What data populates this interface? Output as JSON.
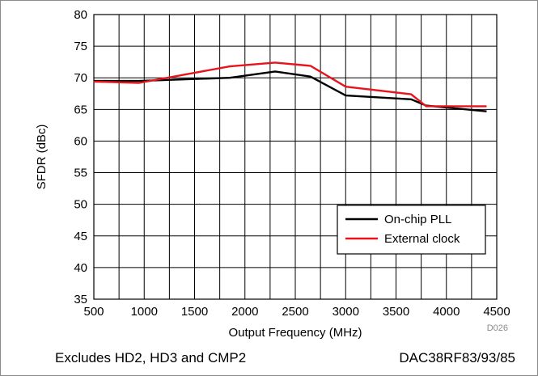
{
  "chart_data": {
    "type": "line",
    "xlabel": "Output Frequency (MHz)",
    "ylabel": "SFDR (dBc)",
    "xlim": [
      500,
      4500
    ],
    "ylim": [
      35,
      80
    ],
    "xticks": [
      500,
      1000,
      1500,
      2000,
      2500,
      3000,
      3500,
      4000,
      4500
    ],
    "yticks": [
      35,
      40,
      45,
      50,
      55,
      60,
      65,
      70,
      75,
      80
    ],
    "minor_x_step": 250,
    "grid": true,
    "legend_position": "lower-right",
    "series": [
      {
        "name": "On-chip PLL",
        "color": "#000000",
        "x": [
          500,
          950,
          1850,
          2300,
          2650,
          3000,
          3650,
          3800,
          4400
        ],
        "y": [
          69.5,
          69.5,
          70.0,
          71.0,
          70.2,
          67.2,
          66.6,
          65.6,
          64.7
        ]
      },
      {
        "name": "External clock",
        "color": "#e8141c",
        "x": [
          500,
          950,
          1850,
          2300,
          2650,
          3000,
          3650,
          3800,
          4400
        ],
        "y": [
          69.4,
          69.2,
          71.8,
          72.4,
          71.9,
          68.6,
          67.4,
          65.5,
          65.5
        ]
      }
    ]
  },
  "figure_id": "D026",
  "caption": {
    "left": "Excludes HD2, HD3 and CMP2",
    "right": "DAC38RF83/93/85"
  }
}
